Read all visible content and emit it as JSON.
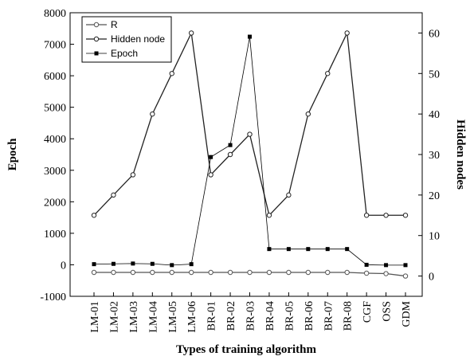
{
  "chart_data": {
    "type": "line",
    "x_label": "Types of training algorithm",
    "y_label": "Epoch",
    "y2_label": "Hidden nodes",
    "categories": [
      "LM-01",
      "LM-02",
      "LM-03",
      "LM-04",
      "LM-05",
      "LM-06",
      "BR-01",
      "BR-02",
      "BR-03",
      "BR-04",
      "BR-05",
      "BR-06",
      "BR-07",
      "BR-08",
      "CGF",
      "OSS",
      "GDM"
    ],
    "ylim": [
      -1000,
      8000
    ],
    "yticks": [
      -1000,
      0,
      1000,
      2000,
      3000,
      4000,
      5000,
      6000,
      7000,
      8000
    ],
    "y2lim": [
      -5,
      65
    ],
    "y2ticks": [
      0,
      10,
      20,
      30,
      40,
      50,
      60
    ],
    "grid": false,
    "legend": "top-left",
    "series": [
      {
        "name": "R",
        "color": "#555555",
        "marker": "open-circle",
        "axis": "y2",
        "values": [
          0.9,
          0.9,
          0.9,
          0.9,
          0.9,
          0.9,
          0.9,
          0.9,
          0.9,
          0.9,
          0.9,
          0.9,
          0.9,
          0.9,
          0.7,
          0.6,
          0
        ]
      },
      {
        "name": "Hidden node",
        "color": "#222222",
        "marker": "open-circle",
        "axis": "y2",
        "values": [
          15,
          20,
          25,
          40,
          50,
          60,
          25,
          30,
          35,
          15,
          20,
          40,
          50,
          60,
          15,
          15,
          15
        ]
      },
      {
        "name": "Epoch",
        "color": "#000000",
        "marker": "filled-square",
        "values": [
          20,
          30,
          40,
          30,
          -10,
          20,
          3420,
          3800,
          7240,
          500,
          500,
          500,
          500,
          500,
          0,
          -10,
          -10
        ]
      }
    ]
  }
}
